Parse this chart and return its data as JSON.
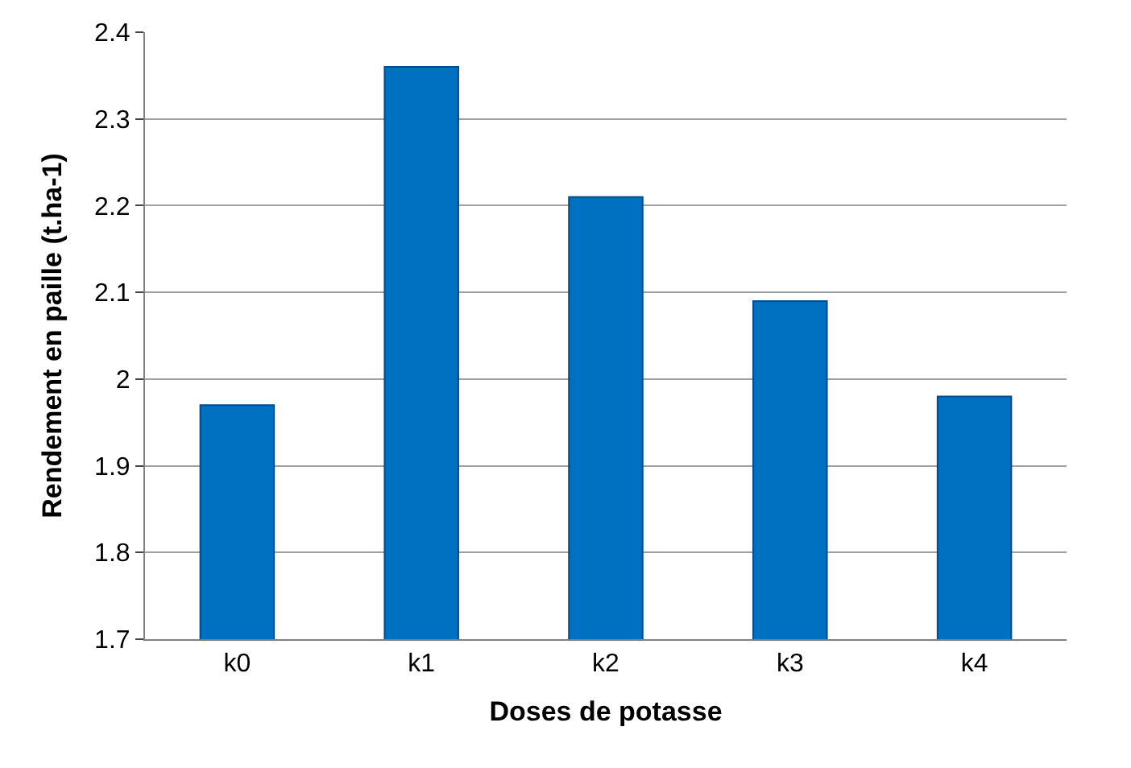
{
  "chart_data": {
    "type": "bar",
    "xlabel": "Doses de potasse",
    "ylabel": "Rendement en paille (t.ha-1)",
    "categories": [
      "k0",
      "k1",
      "k2",
      "k3",
      "k4"
    ],
    "values": [
      1.97,
      2.36,
      2.21,
      2.09,
      1.98
    ],
    "color": "#0070c0",
    "ylim": [
      1.7,
      2.4
    ],
    "yticks": [
      1.7,
      1.8,
      1.9,
      2,
      2.1,
      2.2,
      2.3,
      2.4
    ],
    "grid": "y"
  }
}
